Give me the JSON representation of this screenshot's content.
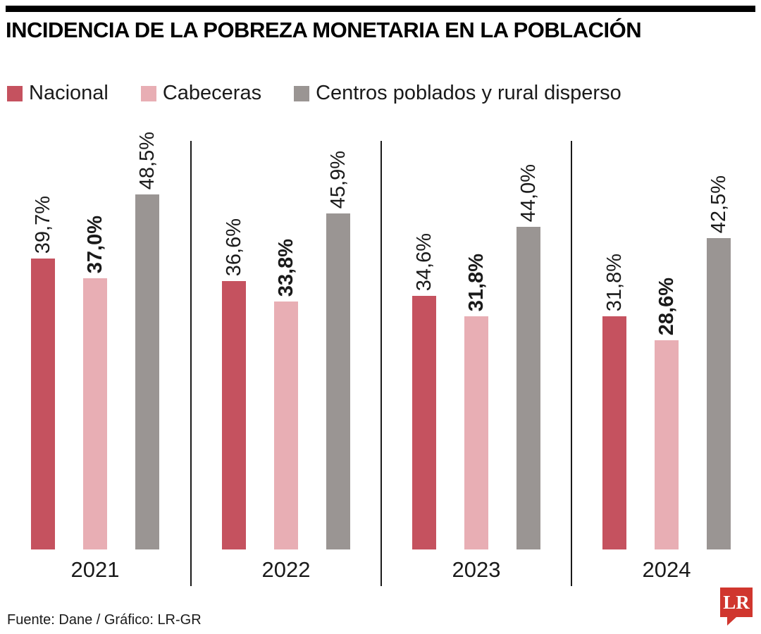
{
  "title": "INCIDENCIA DE LA POBREZA MONETARIA EN LA POBLACIÓN",
  "legend": [
    {
      "label": "Nacional",
      "color": "#c5525f"
    },
    {
      "label": "Cabeceras",
      "color": "#e8aeb4"
    },
    {
      "label": "Centros poblados y rural disperso",
      "color": "#9a9593"
    }
  ],
  "footer": {
    "source": "Fuente: Dane / Gráfico: LR-GR",
    "logo_text": "LR",
    "logo_color": "#d0362e"
  },
  "chart_data": {
    "type": "bar",
    "title": "INCIDENCIA DE LA POBREZA MONETARIA EN LA POBLACIÓN",
    "categories": [
      "2021",
      "2022",
      "2023",
      "2024"
    ],
    "series": [
      {
        "name": "Nacional",
        "color": "#c5525f",
        "bold_labels": false,
        "values": [
          39.7,
          36.6,
          34.6,
          31.8
        ],
        "labels": [
          "39,7%",
          "36,6%",
          "34,6%",
          "31,8%"
        ]
      },
      {
        "name": "Cabeceras",
        "color": "#e8aeb4",
        "bold_labels": true,
        "values": [
          37.0,
          33.8,
          31.8,
          28.6
        ],
        "labels": [
          "37,0%",
          "33,8%",
          "31,8%",
          "28,6%"
        ]
      },
      {
        "name": "Centros poblados y rural disperso",
        "color": "#9a9593",
        "bold_labels": false,
        "values": [
          48.5,
          45.9,
          44.0,
          42.5
        ],
        "labels": [
          "48,5%",
          "45,9%",
          "44,0%",
          "42,5%"
        ]
      }
    ],
    "xlabel": "",
    "ylabel": "",
    "ylim": [
      0,
      50
    ],
    "grid": false,
    "legend_position": "top",
    "value_labels_rotated": true
  }
}
